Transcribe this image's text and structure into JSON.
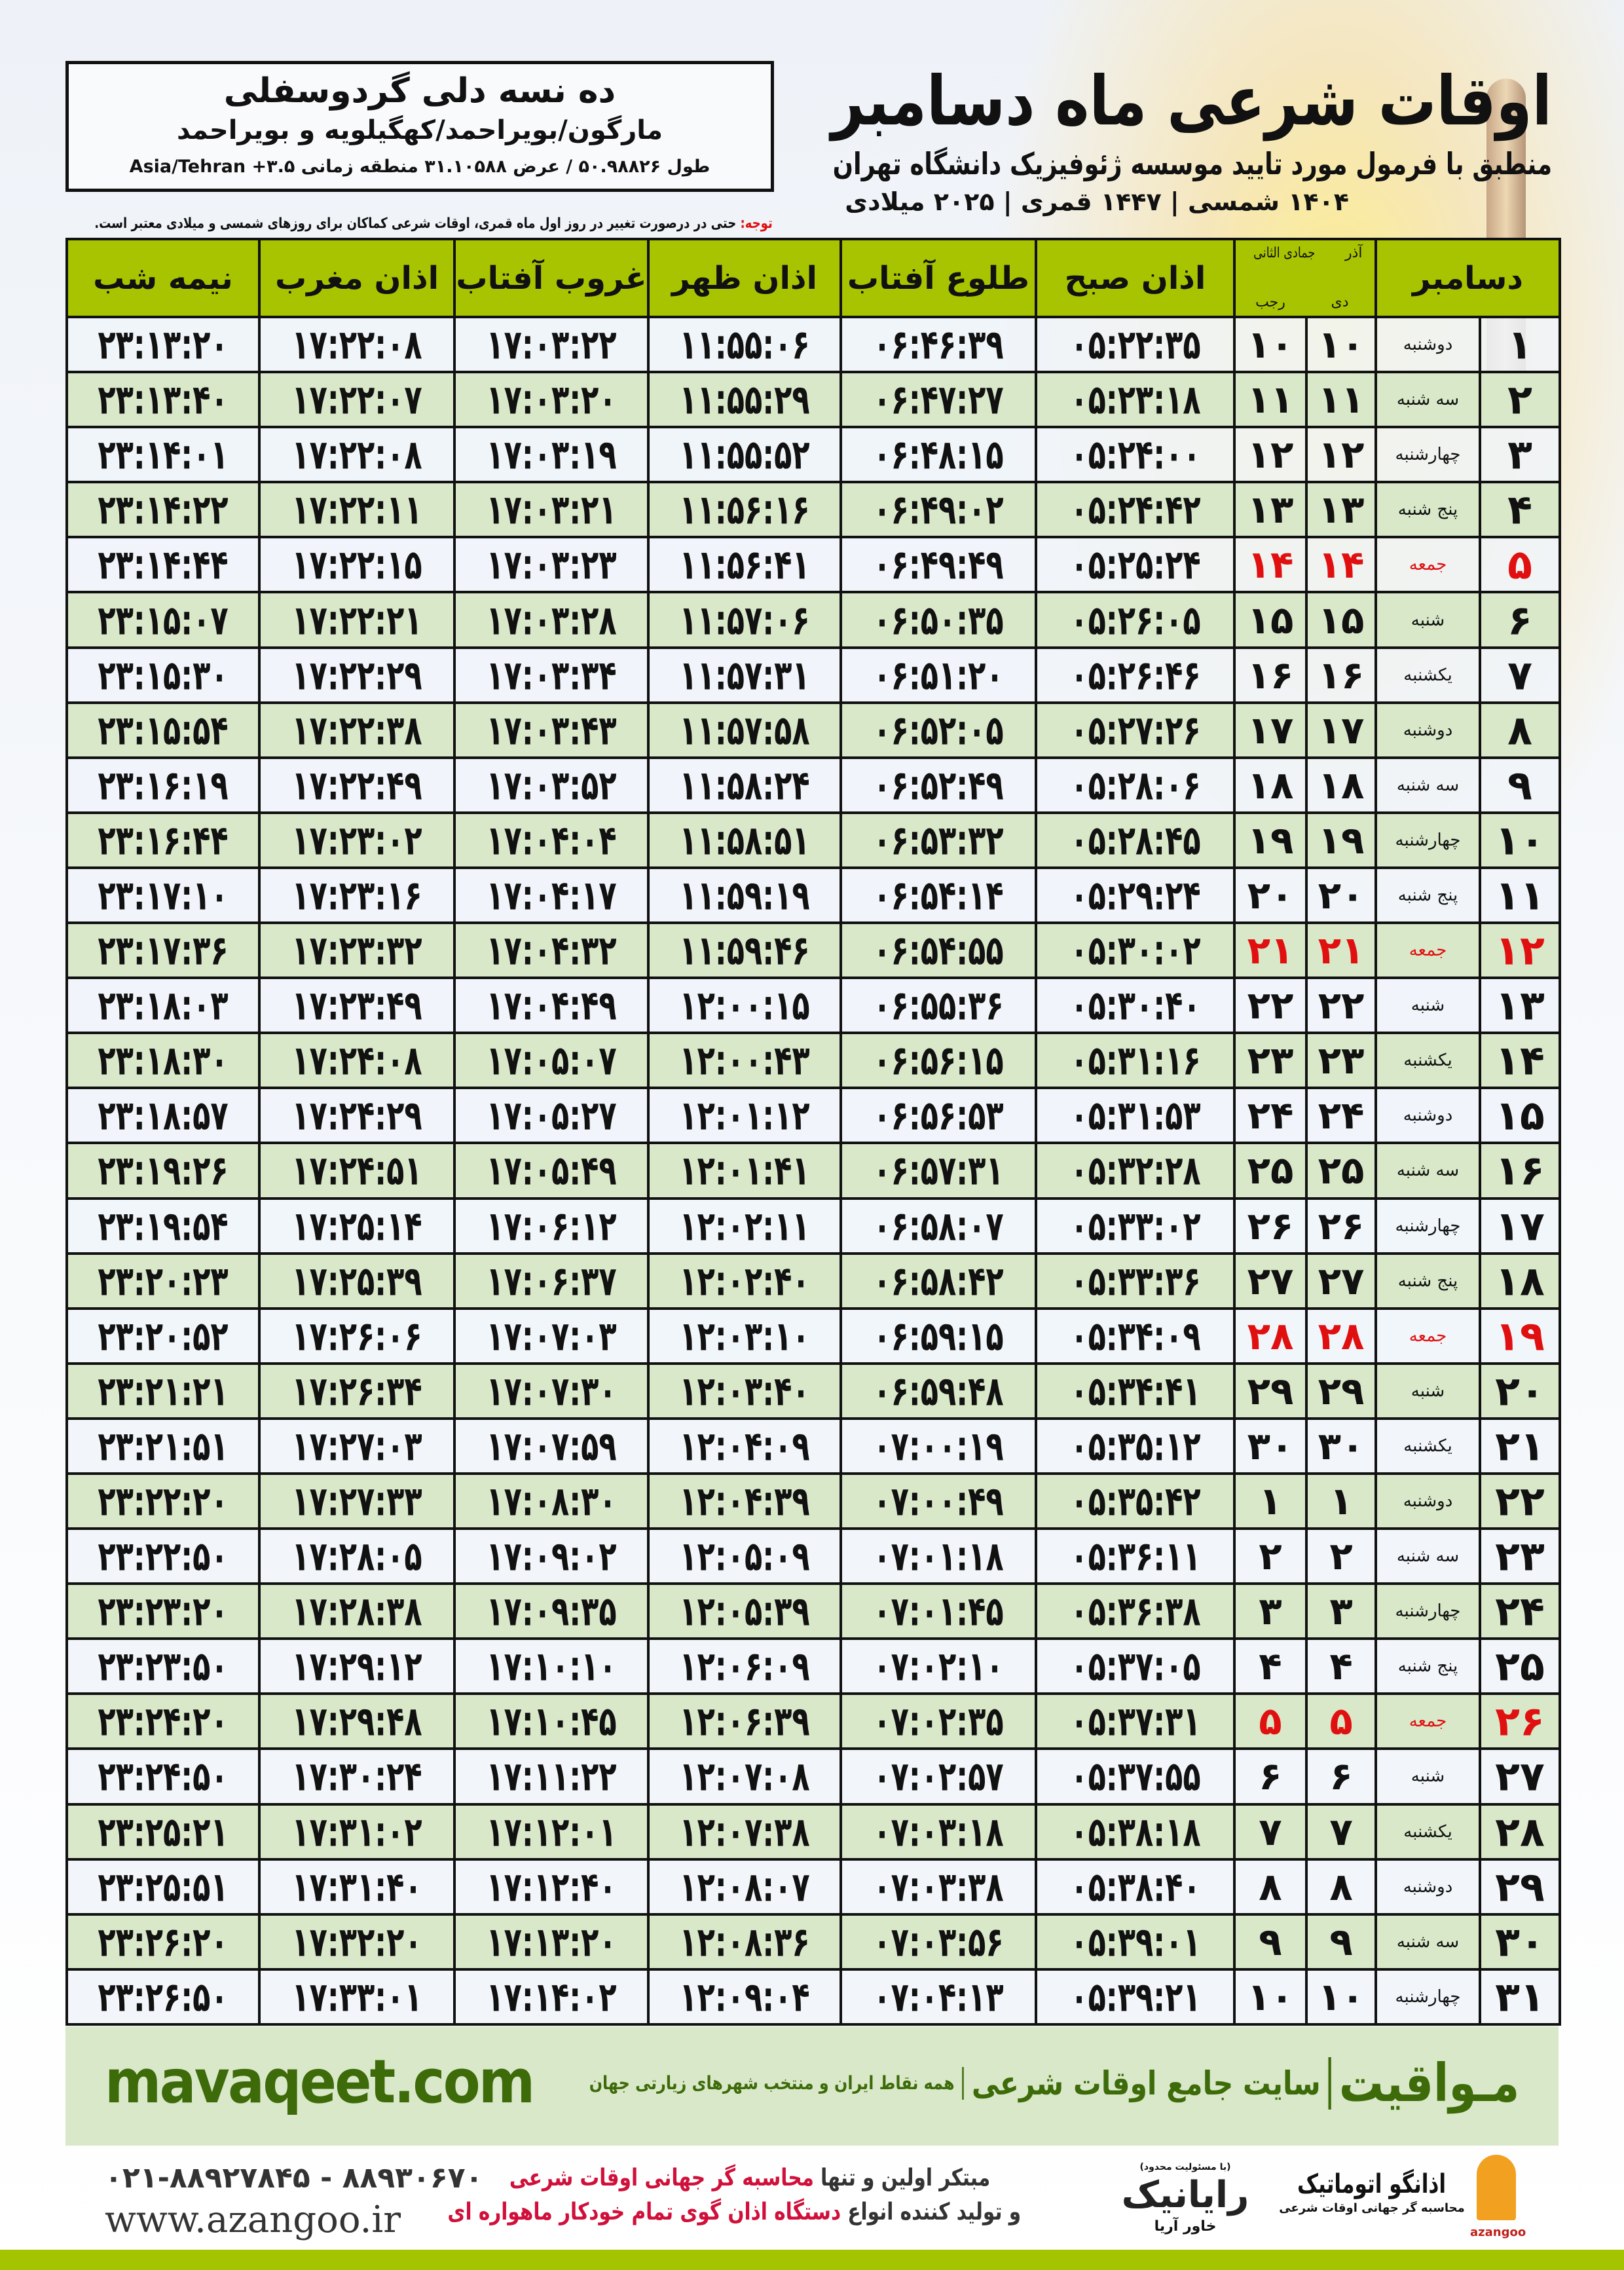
{
  "header": {
    "title": "اوقات شرعی ماه دسامبر",
    "subtitle": "منطبق با فرمول مورد تایید موسسه ژئوفیزیک دانشگاه تهران",
    "dateline": "۱۴۰۴ شمسی | ۱۴۴۷ قمری | ۲۰۲۵ میلادی"
  },
  "location": {
    "name": "ده نسه دلی گردوسفلی",
    "region": "مارگون/بویراحمد/کهگیلویه و بویراحمد",
    "coords": "طول ۵۰.۹۸۸۲۶ / عرض ۳۱.۱۰۵۸۸ منطقه زمانی ۳.۵+ Asia/Tehran"
  },
  "note": {
    "label": "توجه:",
    "text": " حتی در درصورت تغییر در روز اول ماه قمری، اوقات شرعی کماکان برای روزهای شمسی و میلادی معتبر است."
  },
  "table": {
    "headers": {
      "month": "دسامبر",
      "solar_top": "آذر",
      "solar_bottom": "دی",
      "lunar_top": "جمادی الثانی",
      "lunar_bottom": "رجب",
      "fajr": "اذان صبح",
      "sunrise": "طلوع آفتاب",
      "dhuhr": "اذان ظهر",
      "sunset": "غروب آفتاب",
      "maghrib": "اذان مغرب",
      "midnight": "نیمه شب"
    },
    "rows": [
      {
        "day": "۱",
        "weekday": "دوشنبه",
        "solar": "۱۰",
        "lunar": "۱۰",
        "fajr": "۰۵:۲۲:۳۵",
        "sunrise": "۰۶:۴۶:۳۹",
        "dhuhr": "۱۱:۵۵:۰۶",
        "sunset": "۱۷:۰۳:۲۲",
        "maghrib": "۱۷:۲۲:۰۸",
        "midnight": "۲۳:۱۳:۲۰",
        "friday": false
      },
      {
        "day": "۲",
        "weekday": "سه شنبه",
        "solar": "۱۱",
        "lunar": "۱۱",
        "fajr": "۰۵:۲۳:۱۸",
        "sunrise": "۰۶:۴۷:۲۷",
        "dhuhr": "۱۱:۵۵:۲۹",
        "sunset": "۱۷:۰۳:۲۰",
        "maghrib": "۱۷:۲۲:۰۷",
        "midnight": "۲۳:۱۳:۴۰",
        "friday": false
      },
      {
        "day": "۳",
        "weekday": "چهارشنبه",
        "solar": "۱۲",
        "lunar": "۱۲",
        "fajr": "۰۵:۲۴:۰۰",
        "sunrise": "۰۶:۴۸:۱۵",
        "dhuhr": "۱۱:۵۵:۵۲",
        "sunset": "۱۷:۰۳:۱۹",
        "maghrib": "۱۷:۲۲:۰۸",
        "midnight": "۲۳:۱۴:۰۱",
        "friday": false
      },
      {
        "day": "۴",
        "weekday": "پنج شنبه",
        "solar": "۱۳",
        "lunar": "۱۳",
        "fajr": "۰۵:۲۴:۴۲",
        "sunrise": "۰۶:۴۹:۰۲",
        "dhuhr": "۱۱:۵۶:۱۶",
        "sunset": "۱۷:۰۳:۲۱",
        "maghrib": "۱۷:۲۲:۱۱",
        "midnight": "۲۳:۱۴:۲۲",
        "friday": false
      },
      {
        "day": "۵",
        "weekday": "جمعه",
        "solar": "۱۴",
        "lunar": "۱۴",
        "fajr": "۰۵:۲۵:۲۴",
        "sunrise": "۰۶:۴۹:۴۹",
        "dhuhr": "۱۱:۵۶:۴۱",
        "sunset": "۱۷:۰۳:۲۳",
        "maghrib": "۱۷:۲۲:۱۵",
        "midnight": "۲۳:۱۴:۴۴",
        "friday": true
      },
      {
        "day": "۶",
        "weekday": "شنبه",
        "solar": "۱۵",
        "lunar": "۱۵",
        "fajr": "۰۵:۲۶:۰۵",
        "sunrise": "۰۶:۵۰:۳۵",
        "dhuhr": "۱۱:۵۷:۰۶",
        "sunset": "۱۷:۰۳:۲۸",
        "maghrib": "۱۷:۲۲:۲۱",
        "midnight": "۲۳:۱۵:۰۷",
        "friday": false
      },
      {
        "day": "۷",
        "weekday": "یکشنبه",
        "solar": "۱۶",
        "lunar": "۱۶",
        "fajr": "۰۵:۲۶:۴۶",
        "sunrise": "۰۶:۵۱:۲۰",
        "dhuhr": "۱۱:۵۷:۳۱",
        "sunset": "۱۷:۰۳:۳۴",
        "maghrib": "۱۷:۲۲:۲۹",
        "midnight": "۲۳:۱۵:۳۰",
        "friday": false
      },
      {
        "day": "۸",
        "weekday": "دوشنبه",
        "solar": "۱۷",
        "lunar": "۱۷",
        "fajr": "۰۵:۲۷:۲۶",
        "sunrise": "۰۶:۵۲:۰۵",
        "dhuhr": "۱۱:۵۷:۵۸",
        "sunset": "۱۷:۰۳:۴۳",
        "maghrib": "۱۷:۲۲:۳۸",
        "midnight": "۲۳:۱۵:۵۴",
        "friday": false
      },
      {
        "day": "۹",
        "weekday": "سه شنبه",
        "solar": "۱۸",
        "lunar": "۱۸",
        "fajr": "۰۵:۲۸:۰۶",
        "sunrise": "۰۶:۵۲:۴۹",
        "dhuhr": "۱۱:۵۸:۲۴",
        "sunset": "۱۷:۰۳:۵۲",
        "maghrib": "۱۷:۲۲:۴۹",
        "midnight": "۲۳:۱۶:۱۹",
        "friday": false
      },
      {
        "day": "۱۰",
        "weekday": "چهارشنبه",
        "solar": "۱۹",
        "lunar": "۱۹",
        "fajr": "۰۵:۲۸:۴۵",
        "sunrise": "۰۶:۵۳:۳۲",
        "dhuhr": "۱۱:۵۸:۵۱",
        "sunset": "۱۷:۰۴:۰۴",
        "maghrib": "۱۷:۲۳:۰۲",
        "midnight": "۲۳:۱۶:۴۴",
        "friday": false
      },
      {
        "day": "۱۱",
        "weekday": "پنج شنبه",
        "solar": "۲۰",
        "lunar": "۲۰",
        "fajr": "۰۵:۲۹:۲۴",
        "sunrise": "۰۶:۵۴:۱۴",
        "dhuhr": "۱۱:۵۹:۱۹",
        "sunset": "۱۷:۰۴:۱۷",
        "maghrib": "۱۷:۲۳:۱۶",
        "midnight": "۲۳:۱۷:۱۰",
        "friday": false
      },
      {
        "day": "۱۲",
        "weekday": "جمعه",
        "solar": "۲۱",
        "lunar": "۲۱",
        "fajr": "۰۵:۳۰:۰۲",
        "sunrise": "۰۶:۵۴:۵۵",
        "dhuhr": "۱۱:۵۹:۴۶",
        "sunset": "۱۷:۰۴:۳۲",
        "maghrib": "۱۷:۲۳:۳۲",
        "midnight": "۲۳:۱۷:۳۶",
        "friday": true
      },
      {
        "day": "۱۳",
        "weekday": "شنبه",
        "solar": "۲۲",
        "lunar": "۲۲",
        "fajr": "۰۵:۳۰:۴۰",
        "sunrise": "۰۶:۵۵:۳۶",
        "dhuhr": "۱۲:۰۰:۱۵",
        "sunset": "۱۷:۰۴:۴۹",
        "maghrib": "۱۷:۲۳:۴۹",
        "midnight": "۲۳:۱۸:۰۳",
        "friday": false
      },
      {
        "day": "۱۴",
        "weekday": "یکشنبه",
        "solar": "۲۳",
        "lunar": "۲۳",
        "fajr": "۰۵:۳۱:۱۶",
        "sunrise": "۰۶:۵۶:۱۵",
        "dhuhr": "۱۲:۰۰:۴۳",
        "sunset": "۱۷:۰۵:۰۷",
        "maghrib": "۱۷:۲۴:۰۸",
        "midnight": "۲۳:۱۸:۳۰",
        "friday": false
      },
      {
        "day": "۱۵",
        "weekday": "دوشنبه",
        "solar": "۲۴",
        "lunar": "۲۴",
        "fajr": "۰۵:۳۱:۵۳",
        "sunrise": "۰۶:۵۶:۵۳",
        "dhuhr": "۱۲:۰۱:۱۲",
        "sunset": "۱۷:۰۵:۲۷",
        "maghrib": "۱۷:۲۴:۲۹",
        "midnight": "۲۳:۱۸:۵۷",
        "friday": false
      },
      {
        "day": "۱۶",
        "weekday": "سه شنبه",
        "solar": "۲۵",
        "lunar": "۲۵",
        "fajr": "۰۵:۳۲:۲۸",
        "sunrise": "۰۶:۵۷:۳۱",
        "dhuhr": "۱۲:۰۱:۴۱",
        "sunset": "۱۷:۰۵:۴۹",
        "maghrib": "۱۷:۲۴:۵۱",
        "midnight": "۲۳:۱۹:۲۶",
        "friday": false
      },
      {
        "day": "۱۷",
        "weekday": "چهارشنبه",
        "solar": "۲۶",
        "lunar": "۲۶",
        "fajr": "۰۵:۳۳:۰۲",
        "sunrise": "۰۶:۵۸:۰۷",
        "dhuhr": "۱۲:۰۲:۱۱",
        "sunset": "۱۷:۰۶:۱۲",
        "maghrib": "۱۷:۲۵:۱۴",
        "midnight": "۲۳:۱۹:۵۴",
        "friday": false
      },
      {
        "day": "۱۸",
        "weekday": "پنج شنبه",
        "solar": "۲۷",
        "lunar": "۲۷",
        "fajr": "۰۵:۳۳:۳۶",
        "sunrise": "۰۶:۵۸:۴۲",
        "dhuhr": "۱۲:۰۲:۴۰",
        "sunset": "۱۷:۰۶:۳۷",
        "maghrib": "۱۷:۲۵:۳۹",
        "midnight": "۲۳:۲۰:۲۳",
        "friday": false
      },
      {
        "day": "۱۹",
        "weekday": "جمعه",
        "solar": "۲۸",
        "lunar": "۲۸",
        "fajr": "۰۵:۳۴:۰۹",
        "sunrise": "۰۶:۵۹:۱۵",
        "dhuhr": "۱۲:۰۳:۱۰",
        "sunset": "۱۷:۰۷:۰۳",
        "maghrib": "۱۷:۲۶:۰۶",
        "midnight": "۲۳:۲۰:۵۲",
        "friday": true
      },
      {
        "day": "۲۰",
        "weekday": "شنبه",
        "solar": "۲۹",
        "lunar": "۲۹",
        "fajr": "۰۵:۳۴:۴۱",
        "sunrise": "۰۶:۵۹:۴۸",
        "dhuhr": "۱۲:۰۳:۴۰",
        "sunset": "۱۷:۰۷:۳۰",
        "maghrib": "۱۷:۲۶:۳۴",
        "midnight": "۲۳:۲۱:۲۱",
        "friday": false
      },
      {
        "day": "۲۱",
        "weekday": "یکشنبه",
        "solar": "۳۰",
        "lunar": "۳۰",
        "fajr": "۰۵:۳۵:۱۲",
        "sunrise": "۰۷:۰۰:۱۹",
        "dhuhr": "۱۲:۰۴:۰۹",
        "sunset": "۱۷:۰۷:۵۹",
        "maghrib": "۱۷:۲۷:۰۳",
        "midnight": "۲۳:۲۱:۵۱",
        "friday": false
      },
      {
        "day": "۲۲",
        "weekday": "دوشنبه",
        "solar": "۱",
        "lunar": "۱",
        "fajr": "۰۵:۳۵:۴۲",
        "sunrise": "۰۷:۰۰:۴۹",
        "dhuhr": "۱۲:۰۴:۳۹",
        "sunset": "۱۷:۰۸:۳۰",
        "maghrib": "۱۷:۲۷:۳۳",
        "midnight": "۲۳:۲۲:۲۰",
        "friday": false
      },
      {
        "day": "۲۳",
        "weekday": "سه شنبه",
        "solar": "۲",
        "lunar": "۲",
        "fajr": "۰۵:۳۶:۱۱",
        "sunrise": "۰۷:۰۱:۱۸",
        "dhuhr": "۱۲:۰۵:۰۹",
        "sunset": "۱۷:۰۹:۰۲",
        "maghrib": "۱۷:۲۸:۰۵",
        "midnight": "۲۳:۲۲:۵۰",
        "friday": false
      },
      {
        "day": "۲۴",
        "weekday": "چهارشنبه",
        "solar": "۳",
        "lunar": "۳",
        "fajr": "۰۵:۳۶:۳۸",
        "sunrise": "۰۷:۰۱:۴۵",
        "dhuhr": "۱۲:۰۵:۳۹",
        "sunset": "۱۷:۰۹:۳۵",
        "maghrib": "۱۷:۲۸:۳۸",
        "midnight": "۲۳:۲۳:۲۰",
        "friday": false
      },
      {
        "day": "۲۵",
        "weekday": "پنج شنبه",
        "solar": "۴",
        "lunar": "۴",
        "fajr": "۰۵:۳۷:۰۵",
        "sunrise": "۰۷:۰۲:۱۰",
        "dhuhr": "۱۲:۰۶:۰۹",
        "sunset": "۱۷:۱۰:۱۰",
        "maghrib": "۱۷:۲۹:۱۲",
        "midnight": "۲۳:۲۳:۵۰",
        "friday": false
      },
      {
        "day": "۲۶",
        "weekday": "جمعه",
        "solar": "۵",
        "lunar": "۵",
        "fajr": "۰۵:۳۷:۳۱",
        "sunrise": "۰۷:۰۲:۳۵",
        "dhuhr": "۱۲:۰۶:۳۹",
        "sunset": "۱۷:۱۰:۴۵",
        "maghrib": "۱۷:۲۹:۴۸",
        "midnight": "۲۳:۲۴:۲۰",
        "friday": true
      },
      {
        "day": "۲۷",
        "weekday": "شنبه",
        "solar": "۶",
        "lunar": "۶",
        "fajr": "۰۵:۳۷:۵۵",
        "sunrise": "۰۷:۰۲:۵۷",
        "dhuhr": "۱۲:۰۷:۰۸",
        "sunset": "۱۷:۱۱:۲۲",
        "maghrib": "۱۷:۳۰:۲۴",
        "midnight": "۲۳:۲۴:۵۰",
        "friday": false
      },
      {
        "day": "۲۸",
        "weekday": "یکشنبه",
        "solar": "۷",
        "lunar": "۷",
        "fajr": "۰۵:۳۸:۱۸",
        "sunrise": "۰۷:۰۳:۱۸",
        "dhuhr": "۱۲:۰۷:۳۸",
        "sunset": "۱۷:۱۲:۰۱",
        "maghrib": "۱۷:۳۱:۰۲",
        "midnight": "۲۳:۲۵:۲۱",
        "friday": false
      },
      {
        "day": "۲۹",
        "weekday": "دوشنبه",
        "solar": "۸",
        "lunar": "۸",
        "fajr": "۰۵:۳۸:۴۰",
        "sunrise": "۰۷:۰۳:۳۸",
        "dhuhr": "۱۲:۰۸:۰۷",
        "sunset": "۱۷:۱۲:۴۰",
        "maghrib": "۱۷:۳۱:۴۰",
        "midnight": "۲۳:۲۵:۵۱",
        "friday": false
      },
      {
        "day": "۳۰",
        "weekday": "سه شنبه",
        "solar": "۹",
        "lunar": "۹",
        "fajr": "۰۵:۳۹:۰۱",
        "sunrise": "۰۷:۰۳:۵۶",
        "dhuhr": "۱۲:۰۸:۳۶",
        "sunset": "۱۷:۱۳:۲۰",
        "maghrib": "۱۷:۳۲:۲۰",
        "midnight": "۲۳:۲۶:۲۰",
        "friday": false
      },
      {
        "day": "۳۱",
        "weekday": "چهارشنبه",
        "solar": "۱۰",
        "lunar": "۱۰",
        "fajr": "۰۵:۳۹:۲۱",
        "sunrise": "۰۷:۰۴:۱۳",
        "dhuhr": "۱۲:۰۹:۰۴",
        "sunset": "۱۷:۱۴:۰۲",
        "maghrib": "۱۷:۳۳:۰۱",
        "midnight": "۲۳:۲۶:۵۰",
        "friday": false
      }
    ]
  },
  "footer": {
    "site": "mavaqeet.com",
    "brand": "مـواقیت",
    "brand_tagline": "سایت جامع اوقات شرعی",
    "brand_sub": "همه نقاط ایران و منتخب شهرهای زیارتی جهان",
    "phone": "۰۲۱-۸۸۹۲۷۸۴۵ - ۸۸۹۳۰۶۷۰",
    "web": "www.azangoo.ir",
    "promo_1a": "مبتکر اولین و تنها ",
    "promo_1b": "محاسبه گر جهانی اوقات شرعی",
    "promo_2a": "و تولید کننده انواع ",
    "promo_2b": "دستگاه اذان گوی تمام خودکار ماهواره ای",
    "raynik_note": "(با مسئولیت محدود)",
    "raynik": "رایانیک",
    "raynik_sub": "خاور آریا",
    "azangoo": "اذانگو اتوماتیک",
    "azangoo_sub": "محاسبه گر جهانی اوقات شرعی",
    "azangoo_en": "azangoo"
  },
  "colors": {
    "header_green": "#a8c400",
    "row_green": "#d8e8c8",
    "friday_red": "#e01010",
    "brand_green": "#3e6b0a",
    "bottom_bar": "#a5c400"
  }
}
